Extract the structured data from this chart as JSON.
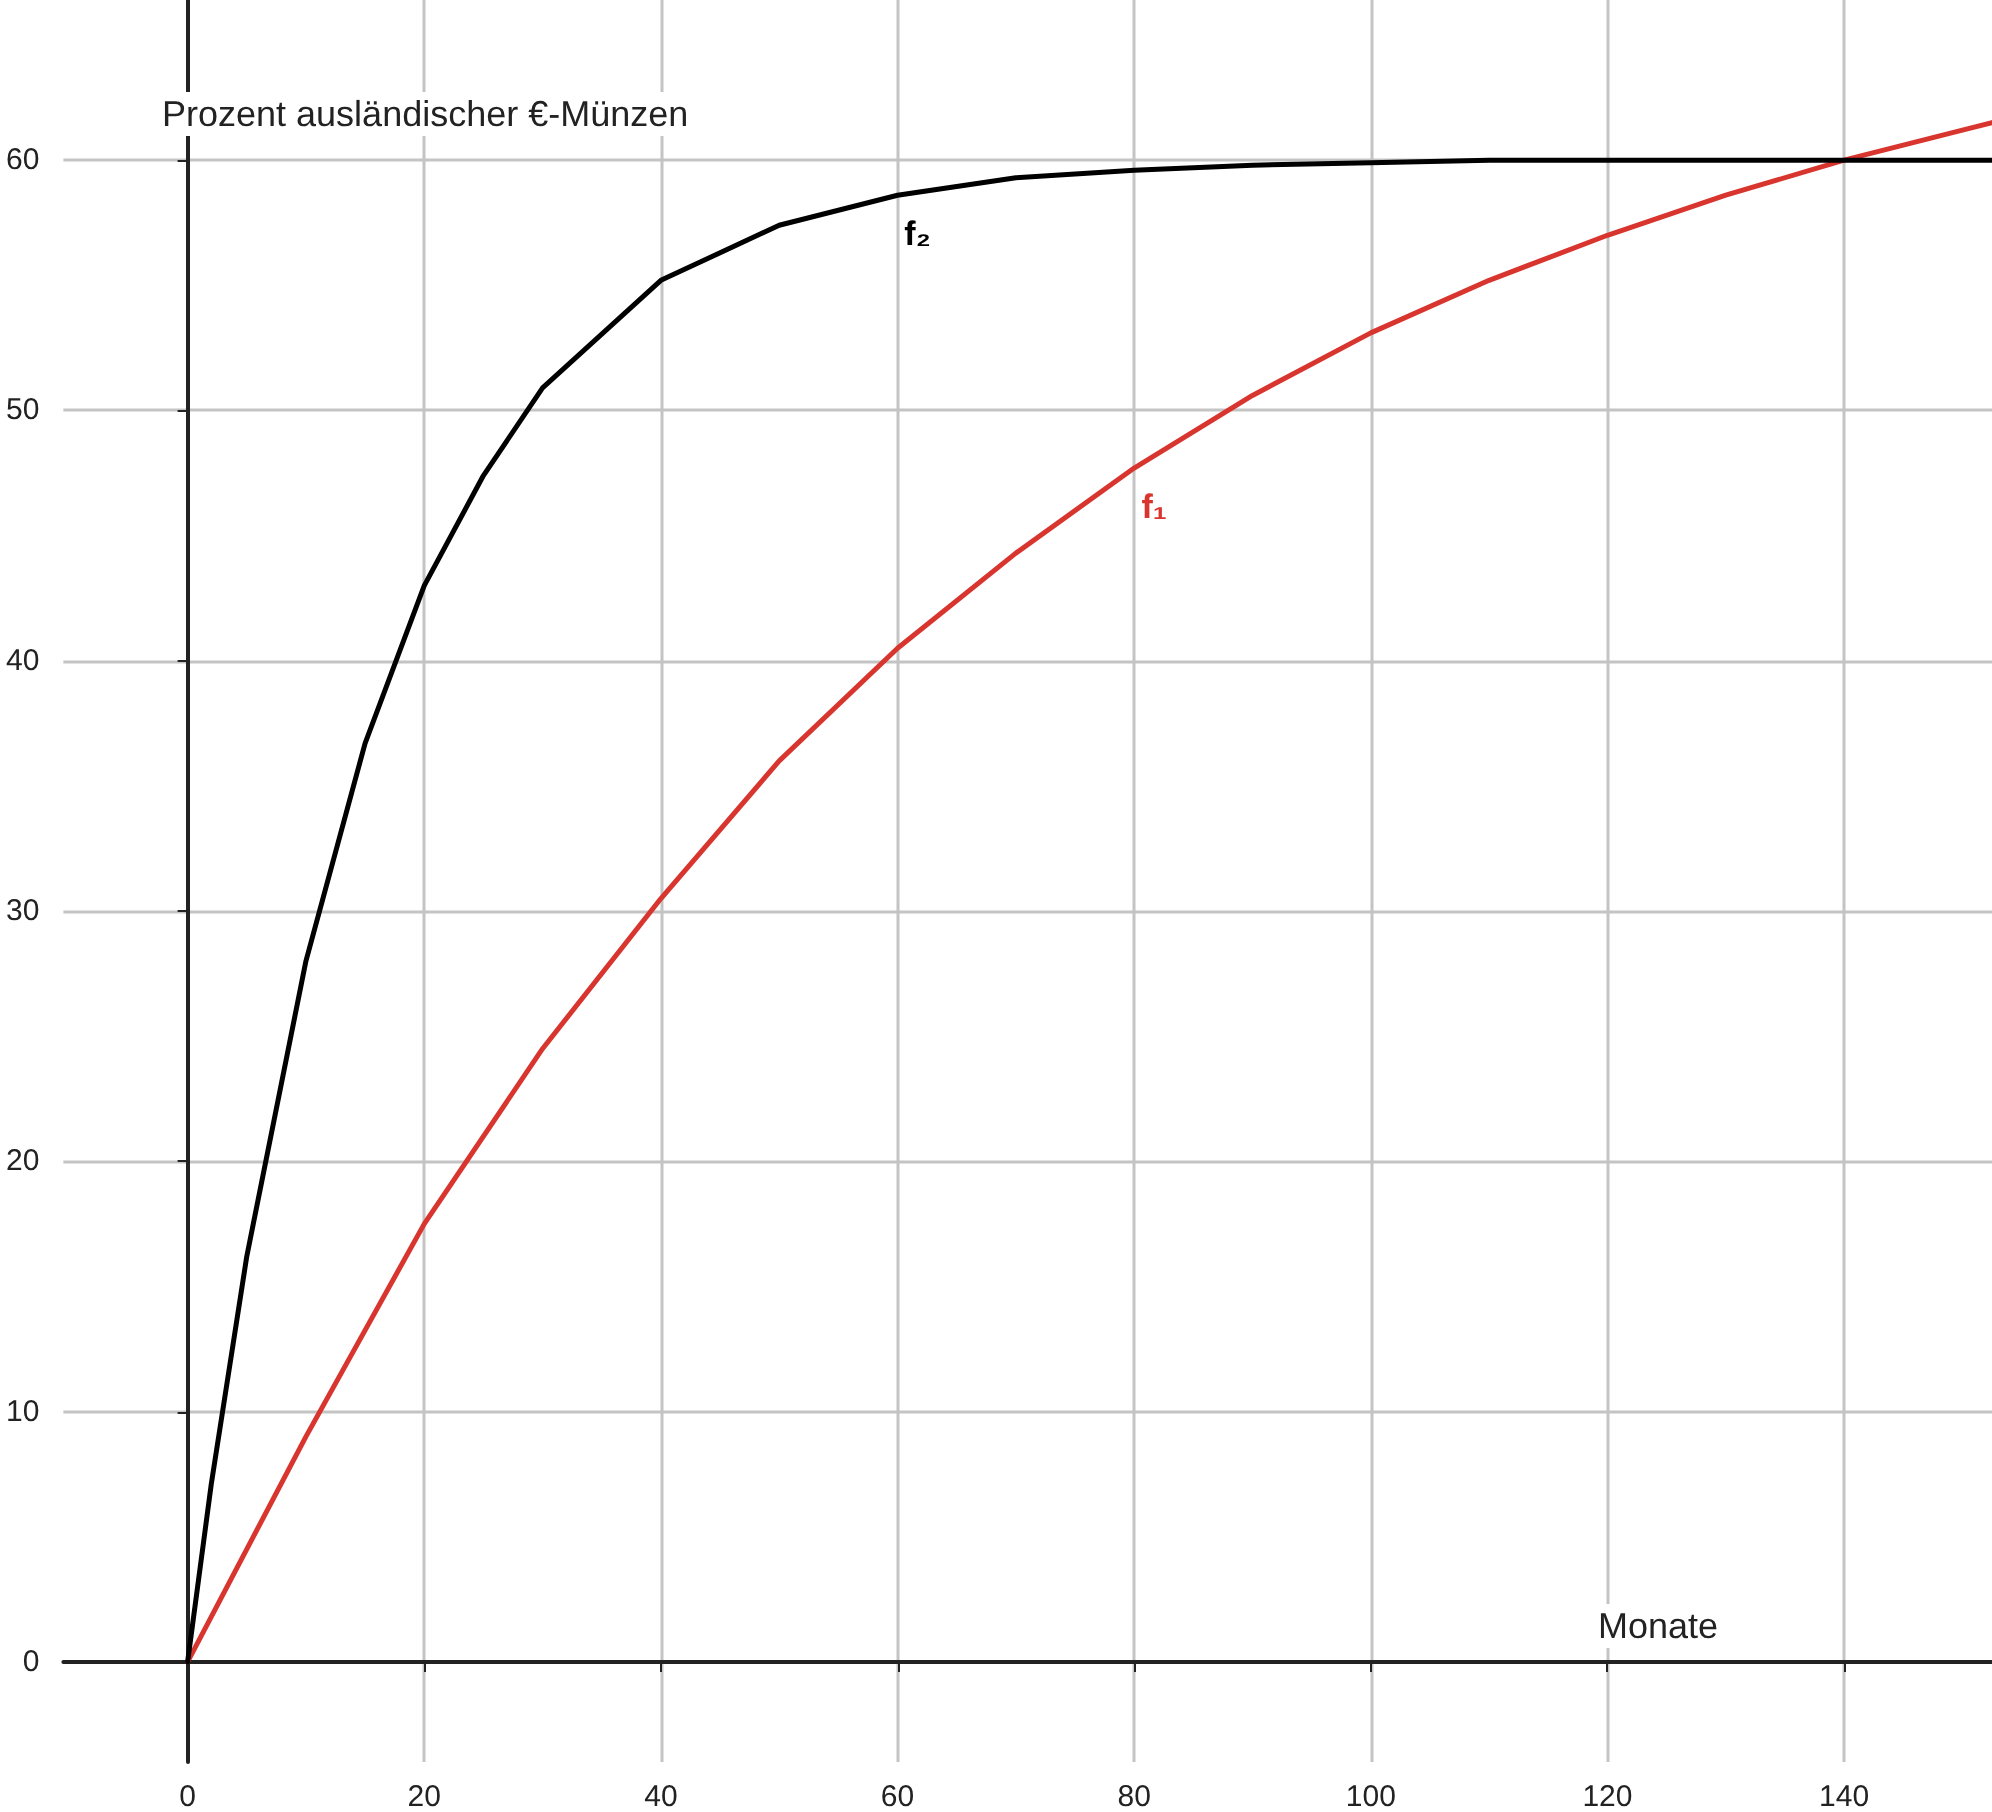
{
  "chart_data": {
    "type": "line",
    "xlabel": "Monate",
    "ylabel": "Prozent ausländischer €-Münzen",
    "xlim": [
      -10.5,
      152.5
    ],
    "ylim": [
      -4,
      66.4
    ],
    "xticks": [
      0,
      20,
      40,
      60,
      80,
      100,
      120,
      140
    ],
    "yticks": [
      0,
      10,
      20,
      30,
      40,
      50,
      60
    ],
    "grid": true,
    "legend": false,
    "marker": "none",
    "line_style": "solid",
    "series": [
      {
        "name": "f₁",
        "color": "#d9352f",
        "x": [
          0,
          10,
          20,
          30,
          40,
          50,
          60,
          70,
          80,
          90,
          100,
          110,
          120,
          130,
          140,
          150,
          152.5
        ],
        "values": [
          0,
          9.0,
          17.5,
          24.5,
          30.5,
          36,
          40.5,
          44.3,
          47.7,
          50.6,
          53.1,
          55.2,
          57.0,
          58.6,
          60.0,
          61.2,
          61.5
        ]
      },
      {
        "name": "f₂",
        "color": "#000000",
        "x": [
          0,
          2,
          5,
          10,
          15,
          20,
          25,
          30,
          40,
          50,
          60,
          70,
          80,
          90,
          100,
          110,
          120,
          130,
          140,
          152.5
        ],
        "values": [
          0,
          7.1,
          16.2,
          28.0,
          36.7,
          43.0,
          47.4,
          50.9,
          55.2,
          57.4,
          58.6,
          59.3,
          59.6,
          59.8,
          59.9,
          60.0,
          60.0,
          60.0,
          60.0,
          60.0
        ]
      }
    ]
  }
}
